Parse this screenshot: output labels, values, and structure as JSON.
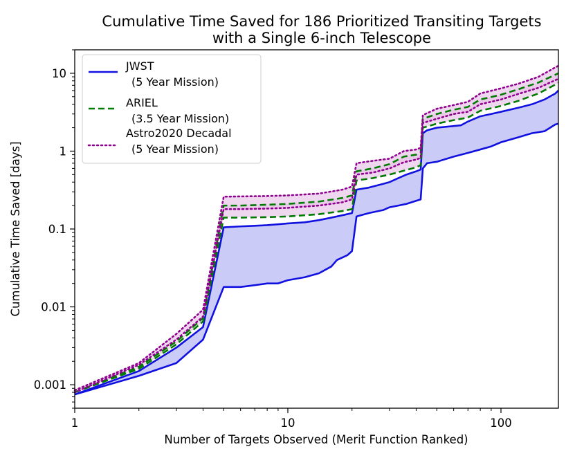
{
  "chart_data": {
    "type": "line",
    "title": "Cumulative Time Saved for 186 Prioritized Transiting Targets",
    "subtitle": "with a Single 6-inch Telescope",
    "xlabel": "Number of Targets Observed (Merit Function Ranked)",
    "ylabel": "Cumulative Time Saved [days]",
    "xscale": "log",
    "yscale": "log",
    "xlim": [
      1,
      186
    ],
    "ylim": [
      0.0005,
      20
    ],
    "x_ticks": [
      {
        "value": 1,
        "label": "1"
      },
      {
        "value": 10,
        "label": "10"
      },
      {
        "value": 100,
        "label": "100"
      }
    ],
    "y_ticks": [
      {
        "value": 0.001,
        "label": "0.001"
      },
      {
        "value": 0.01,
        "label": "0.01"
      },
      {
        "value": 0.1,
        "label": "0.1"
      },
      {
        "value": 1,
        "label": "1"
      },
      {
        "value": 10,
        "label": "10"
      }
    ],
    "legend_position": "top-left",
    "band_fill": "#c8c8f8",
    "band_fill_upper": "#e8c8e8",
    "series": [
      {
        "name": "JWST",
        "legend_label": "JWST",
        "legend_sub": "(5 Year Mission)",
        "color": "#1010e0",
        "style": "solid",
        "lower": {
          "x": [
            1,
            2,
            3,
            4,
            5,
            6,
            7,
            8,
            9,
            10,
            12,
            14,
            16,
            17,
            18,
            19,
            20,
            21,
            24,
            28,
            30,
            33,
            36,
            40,
            42,
            43,
            45,
            50,
            60,
            70,
            80,
            90,
            100,
            120,
            140,
            160,
            180,
            186
          ],
          "y": [
            0.00075,
            0.0013,
            0.0019,
            0.0038,
            0.018,
            0.018,
            0.019,
            0.02,
            0.02,
            0.022,
            0.024,
            0.027,
            0.033,
            0.04,
            0.043,
            0.046,
            0.052,
            0.145,
            0.16,
            0.175,
            0.19,
            0.2,
            0.21,
            0.23,
            0.24,
            0.6,
            0.7,
            0.73,
            0.85,
            0.95,
            1.05,
            1.15,
            1.3,
            1.5,
            1.7,
            1.8,
            2.2,
            2.25
          ]
        },
        "upper": {
          "x": [
            1,
            2,
            3,
            4,
            5,
            6,
            7,
            8,
            9,
            10,
            12,
            14,
            16,
            18,
            19,
            20,
            21,
            24,
            28,
            30,
            33,
            36,
            40,
            42,
            43,
            45,
            50,
            60,
            65,
            70,
            80,
            90,
            100,
            120,
            140,
            160,
            180,
            186
          ],
          "y": [
            0.00075,
            0.0015,
            0.003,
            0.0055,
            0.105,
            0.108,
            0.11,
            0.112,
            0.115,
            0.118,
            0.122,
            0.13,
            0.14,
            0.15,
            0.155,
            0.16,
            0.32,
            0.34,
            0.38,
            0.4,
            0.45,
            0.5,
            0.55,
            0.58,
            1.7,
            1.85,
            2.0,
            2.1,
            2.15,
            2.4,
            2.8,
            3.0,
            3.2,
            3.6,
            4.0,
            4.6,
            5.5,
            6.0
          ]
        }
      },
      {
        "name": "ARIEL",
        "legend_label": "ARIEL",
        "legend_sub": "(3.5 Year Mission)",
        "color": "#007a00",
        "style": "dashed",
        "lower": {
          "x": [
            1,
            2,
            3,
            4,
            5,
            6,
            8,
            10,
            14,
            18,
            20,
            21,
            25,
            30,
            35,
            40,
            42,
            43,
            50,
            60,
            70,
            80,
            100,
            120,
            150,
            186
          ],
          "y": [
            0.0008,
            0.0016,
            0.0033,
            0.0065,
            0.14,
            0.14,
            0.142,
            0.145,
            0.155,
            0.17,
            0.18,
            0.42,
            0.45,
            0.5,
            0.56,
            0.62,
            0.66,
            2.0,
            2.25,
            2.5,
            2.7,
            3.3,
            3.8,
            4.4,
            5.5,
            7.5
          ]
        },
        "upper": {
          "x": [
            1,
            2,
            3,
            4,
            5,
            6,
            8,
            10,
            14,
            18,
            20,
            21,
            25,
            30,
            35,
            40,
            42,
            43,
            50,
            60,
            70,
            80,
            100,
            120,
            150,
            186
          ],
          "y": [
            0.0008,
            0.0017,
            0.0036,
            0.0072,
            0.2,
            0.2,
            0.205,
            0.21,
            0.225,
            0.25,
            0.27,
            0.55,
            0.6,
            0.68,
            0.85,
            0.9,
            0.95,
            2.6,
            3.0,
            3.4,
            3.7,
            4.6,
            5.3,
            6.2,
            7.6,
            10.0
          ]
        }
      },
      {
        "name": "Astro2020 Decadal",
        "legend_label": "Astro2020 Decadal",
        "legend_sub": "(5 Year Mission)",
        "color": "#900090",
        "style": "dotted",
        "lower": {
          "x": [
            1,
            2,
            3,
            4,
            5,
            6,
            8,
            10,
            14,
            18,
            20,
            21,
            25,
            30,
            35,
            40,
            42,
            43,
            50,
            60,
            70,
            80,
            100,
            120,
            150,
            186
          ],
          "y": [
            0.0008,
            0.0018,
            0.0038,
            0.0075,
            0.18,
            0.18,
            0.183,
            0.187,
            0.2,
            0.22,
            0.24,
            0.5,
            0.53,
            0.6,
            0.72,
            0.78,
            0.82,
            2.3,
            2.6,
            3.0,
            3.2,
            4.0,
            4.6,
            5.4,
            6.5,
            8.5
          ]
        },
        "upper": {
          "x": [
            1,
            2,
            3,
            4,
            5,
            6,
            8,
            10,
            14,
            18,
            20,
            21,
            25,
            30,
            35,
            40,
            42,
            43,
            50,
            60,
            70,
            80,
            100,
            120,
            150,
            186
          ],
          "y": [
            0.00085,
            0.0019,
            0.0045,
            0.0092,
            0.26,
            0.262,
            0.265,
            0.27,
            0.285,
            0.32,
            0.35,
            0.7,
            0.75,
            0.8,
            1.0,
            1.05,
            1.1,
            2.9,
            3.5,
            3.9,
            4.3,
            5.5,
            6.4,
            7.3,
            9.0,
            12.5
          ]
        }
      }
    ]
  }
}
